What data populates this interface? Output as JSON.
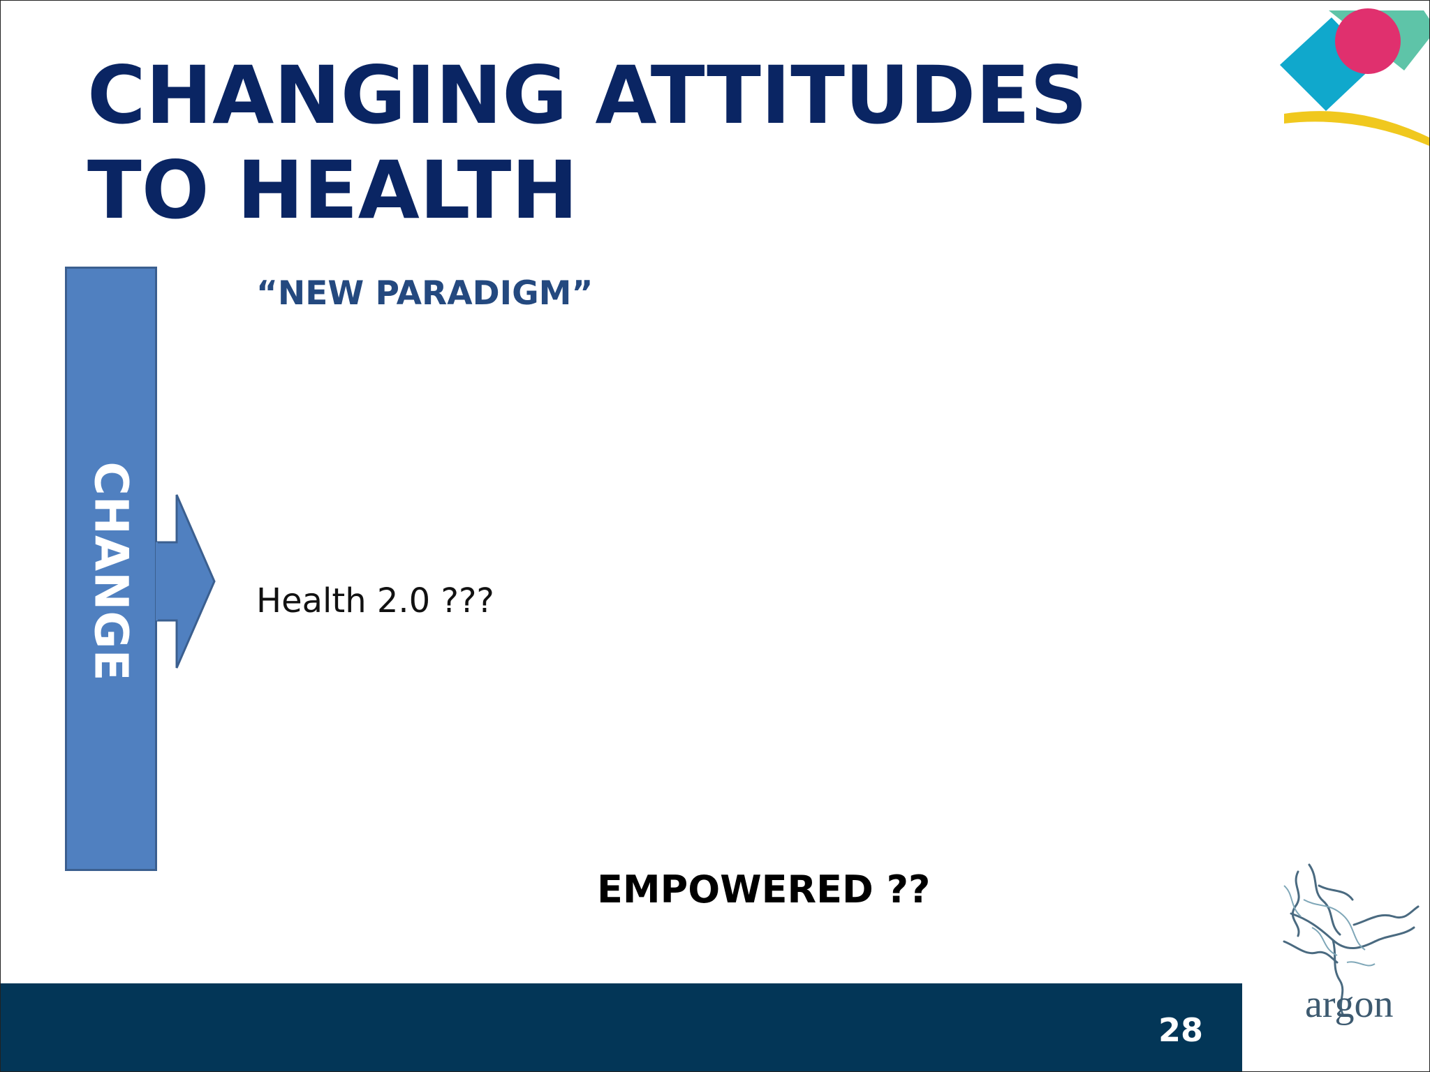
{
  "slide": {
    "title": "CHANGING ATTITUDES TO HEALTH",
    "side_label": "CHANGE",
    "subheading": "“NEW PARADIGM”",
    "body_line": "Health 2.0 ???",
    "emphasis": "EMPOWERED ??",
    "page_number": "28"
  },
  "branding": {
    "logo_text": "argon",
    "icons": [
      "corner-shapes-logo",
      "argon-figure-logo",
      "right-arrow-icon"
    ]
  },
  "colors": {
    "title": "#0a2563",
    "subheading": "#24497f",
    "change_bar": "#5080c0",
    "footer": "#033657",
    "logo_magenta": "#e0306e",
    "logo_cyan": "#10a8cc",
    "logo_teal": "#5ec4a8",
    "logo_yellow": "#f0c81e"
  }
}
